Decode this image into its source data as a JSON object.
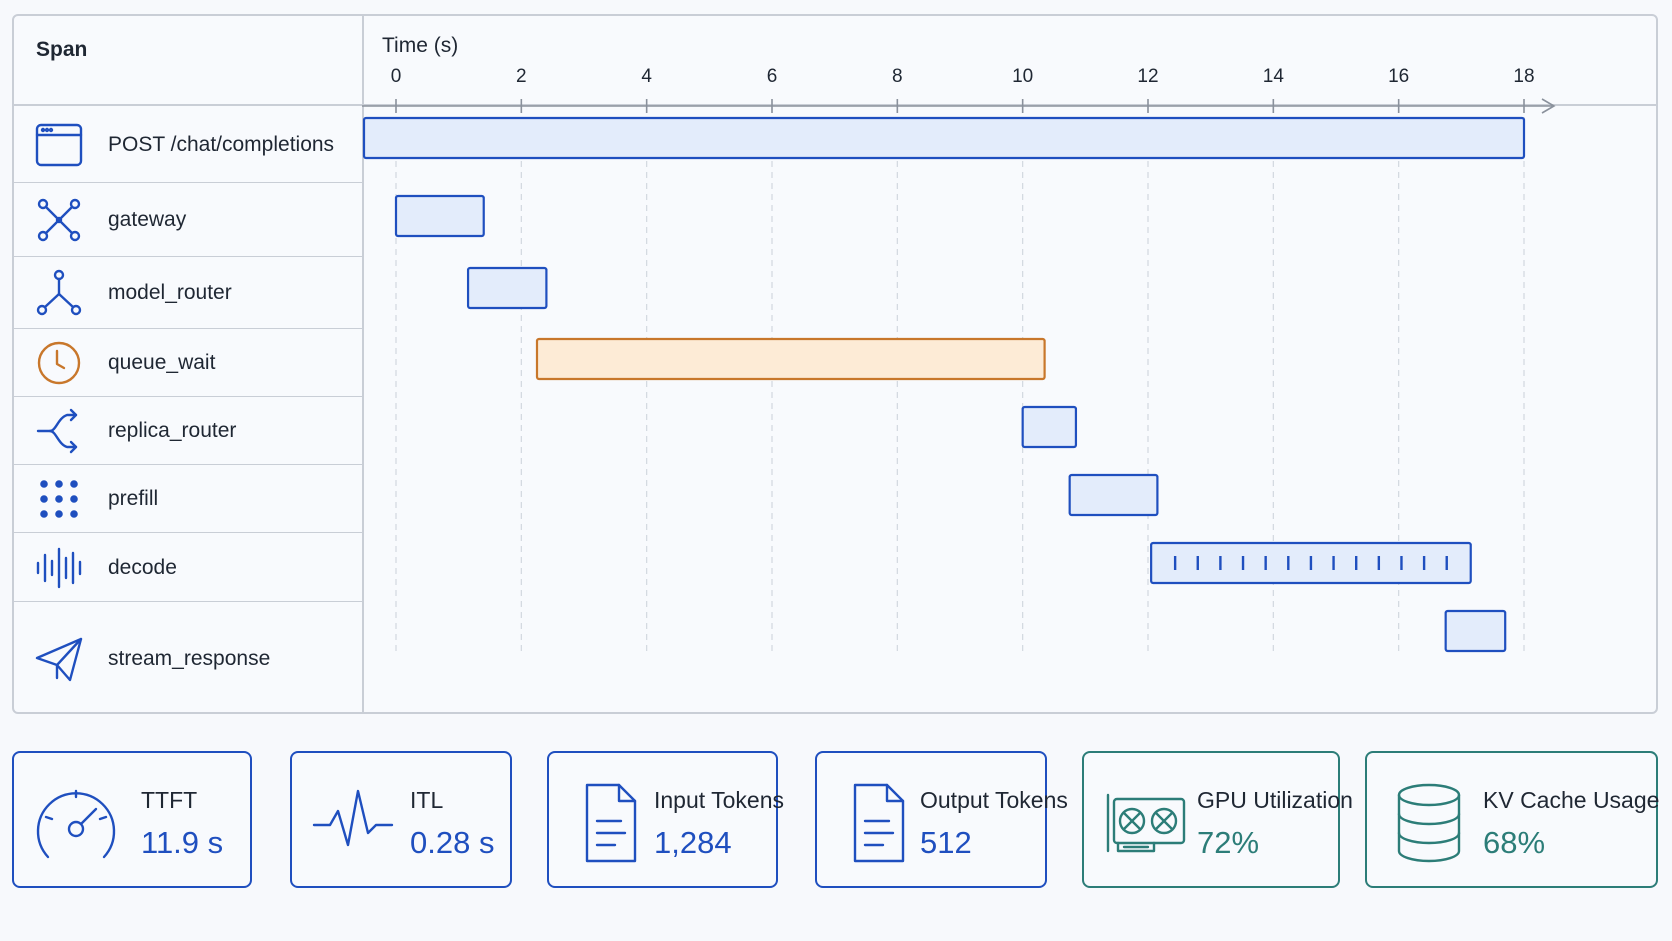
{
  "trace": {
    "span_header": "Span",
    "time_header": "Time (s)",
    "axis_ticks": [
      "0",
      "2",
      "4",
      "6",
      "8",
      "10",
      "12",
      "14",
      "16",
      "18"
    ],
    "spans": [
      {
        "name": "POST /chat/completions",
        "icon": "browser-window-icon",
        "start": 0,
        "end": 18,
        "kind": "normal"
      },
      {
        "name": "gateway",
        "icon": "network-nodes-icon",
        "start": 0,
        "end": 1.4,
        "kind": "normal"
      },
      {
        "name": "model_router",
        "icon": "fork-nodes-icon",
        "start": 1.15,
        "end": 2.4,
        "kind": "normal"
      },
      {
        "name": "queue_wait",
        "icon": "clock-icon",
        "start": 2.25,
        "end": 10.35,
        "kind": "wait"
      },
      {
        "name": "replica_router",
        "icon": "route-split-icon",
        "start": 10.0,
        "end": 10.85,
        "kind": "normal"
      },
      {
        "name": "prefill",
        "icon": "dot-grid-icon",
        "start": 10.75,
        "end": 12.15,
        "kind": "normal"
      },
      {
        "name": "decode",
        "icon": "waveform-icon",
        "start": 12.05,
        "end": 17.15,
        "kind": "decode",
        "token_ticks": 13
      },
      {
        "name": "stream_response",
        "icon": "paper-plane-icon",
        "start": 16.75,
        "end": 17.7,
        "kind": "normal"
      }
    ]
  },
  "metrics": [
    {
      "label": "TTFT",
      "value": "11.9 s",
      "icon": "speedometer-icon",
      "tone": "blue"
    },
    {
      "label": "ITL",
      "value": "0.28 s",
      "icon": "pulse-icon",
      "tone": "blue"
    },
    {
      "label": "Input Tokens",
      "value": "1,284",
      "icon": "document-icon",
      "tone": "blue"
    },
    {
      "label": "Output Tokens",
      "value": "512",
      "icon": "document-icon",
      "tone": "blue"
    },
    {
      "label": "GPU Utilization",
      "value": "72%",
      "icon": "gpu-card-icon",
      "tone": "teal"
    },
    {
      "label": "KV Cache Usage",
      "value": "68%",
      "icon": "database-icon",
      "tone": "teal"
    }
  ],
  "colors": {
    "accent": "#1f4fbf",
    "bar_fill": "#e3ecfb",
    "wait_stroke": "#c8772b",
    "wait_fill": "#fdebd6",
    "teal": "#2c7d78"
  }
}
